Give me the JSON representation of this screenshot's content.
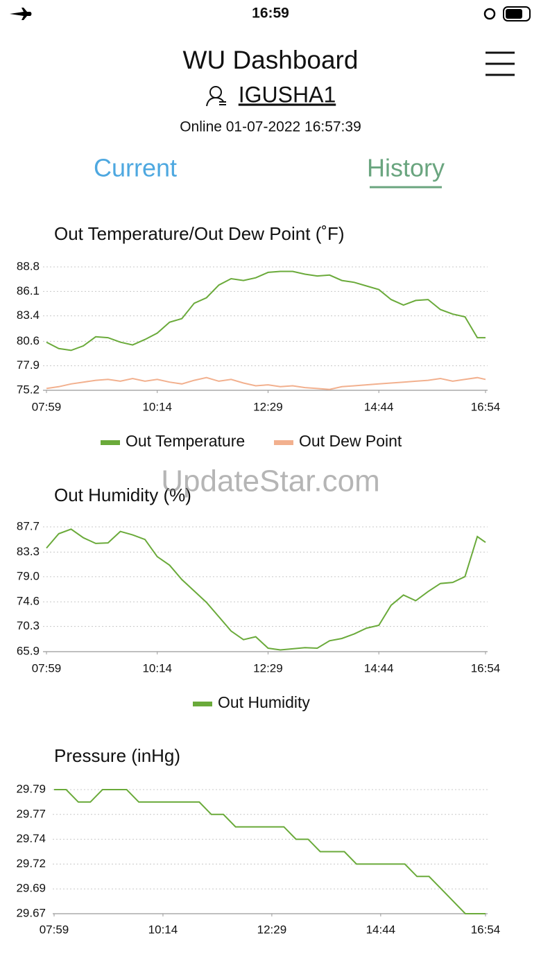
{
  "status_bar": {
    "time": "16:59"
  },
  "header": {
    "title": "WU Dashboard",
    "station": "IGUSHA1",
    "status": "Online 01-07-2022 16:57:39"
  },
  "tabs": [
    "Current",
    "History"
  ],
  "watermark": "UpdateStar.com",
  "chart_data": [
    {
      "type": "line",
      "title": "Out Temperature/Out Dew Point (˚F)",
      "x": [
        479,
        494,
        509,
        524,
        539,
        554,
        569,
        584,
        599,
        614,
        629,
        644,
        659,
        674,
        689,
        704,
        719,
        734,
        749,
        764,
        779,
        794,
        809,
        824,
        839,
        854,
        869,
        884,
        899,
        914,
        929,
        944,
        959,
        974,
        989,
        1004,
        1014
      ],
      "xlim": [
        479,
        1014
      ],
      "xticks": [
        {
          "value": 479,
          "label": "07:59"
        },
        {
          "value": 614,
          "label": "10:14"
        },
        {
          "value": 749,
          "label": "12:29"
        },
        {
          "value": 884,
          "label": "14:44"
        },
        {
          "value": 1014,
          "label": "16:54"
        }
      ],
      "ylim": [
        75.2,
        88.8
      ],
      "yticks": [
        75.2,
        77.9,
        80.6,
        83.4,
        86.1,
        88.8
      ],
      "grid": true,
      "series": [
        {
          "name": "Out Temperature",
          "color": "#6aaa3a",
          "values": [
            80.5,
            79.8,
            79.6,
            80.1,
            81.1,
            81.0,
            80.5,
            80.2,
            80.8,
            81.5,
            82.7,
            83.1,
            84.8,
            85.4,
            86.8,
            87.5,
            87.3,
            87.6,
            88.2,
            88.3,
            88.3,
            88.0,
            87.8,
            87.9,
            87.3,
            87.1,
            86.7,
            86.3,
            85.2,
            84.6,
            85.1,
            85.2,
            84.1,
            83.6,
            83.3,
            81.0,
            81.0
          ]
        },
        {
          "name": "Out Dew Point",
          "color": "#f2b08e",
          "values": [
            75.4,
            75.6,
            75.9,
            76.1,
            76.3,
            76.4,
            76.2,
            76.5,
            76.2,
            76.4,
            76.1,
            75.9,
            76.3,
            76.6,
            76.2,
            76.4,
            76.0,
            75.7,
            75.8,
            75.6,
            75.7,
            75.5,
            75.4,
            75.3,
            75.6,
            75.7,
            75.8,
            75.9,
            76.0,
            76.1,
            76.2,
            76.3,
            76.5,
            76.2,
            76.4,
            76.6,
            76.4
          ]
        }
      ]
    },
    {
      "type": "line",
      "title": "Out Humidity (%)",
      "x": [
        479,
        494,
        509,
        524,
        539,
        554,
        569,
        584,
        599,
        614,
        629,
        644,
        659,
        674,
        689,
        704,
        719,
        734,
        749,
        764,
        779,
        794,
        809,
        824,
        839,
        854,
        869,
        884,
        899,
        914,
        929,
        944,
        959,
        974,
        989,
        1004,
        1014
      ],
      "xlim": [
        479,
        1014
      ],
      "xticks": [
        {
          "value": 479,
          "label": "07:59"
        },
        {
          "value": 614,
          "label": "10:14"
        },
        {
          "value": 749,
          "label": "12:29"
        },
        {
          "value": 884,
          "label": "14:44"
        },
        {
          "value": 1014,
          "label": "16:54"
        }
      ],
      "ylim": [
        65.9,
        87.7
      ],
      "yticks": [
        65.9,
        70.3,
        74.6,
        {
          "value": 79,
          "label": "79.0"
        },
        83.3,
        87.7
      ],
      "grid": true,
      "series": [
        {
          "name": "Out Humidity",
          "color": "#6aaa3a",
          "values": [
            84,
            86.5,
            87.3,
            85.8,
            84.8,
            84.9,
            86.9,
            86.3,
            85.5,
            82.5,
            81.0,
            78.5,
            76.5,
            74.5,
            72,
            69.5,
            68,
            68.5,
            66.5,
            66.2,
            66.4,
            66.6,
            66.5,
            67.8,
            68.2,
            69.0,
            70.0,
            70.5,
            74,
            75.8,
            74.8,
            76.4,
            77.8,
            78,
            79.0,
            86.0,
            85.0
          ]
        }
      ]
    },
    {
      "type": "line",
      "title": "Pressure (inHg)",
      "x": [
        479,
        494,
        509,
        524,
        539,
        554,
        569,
        584,
        599,
        614,
        629,
        644,
        659,
        674,
        689,
        704,
        719,
        734,
        749,
        764,
        779,
        794,
        809,
        824,
        839,
        854,
        869,
        884,
        899,
        914,
        929,
        944,
        959,
        974,
        989,
        1004,
        1014
      ],
      "xlim": [
        479,
        1014
      ],
      "xticks": [
        {
          "value": 479,
          "label": "07:59"
        },
        {
          "value": 614,
          "label": "10:14"
        },
        {
          "value": 749,
          "label": "12:29"
        },
        {
          "value": 884,
          "label": "14:44"
        },
        {
          "value": 1014,
          "label": "16:54"
        }
      ],
      "ylim": [
        29.67,
        29.79
      ],
      "yticks": [
        29.67,
        {
          "value": 29.694,
          "label": "29.69"
        },
        {
          "value": 29.718,
          "label": "29.72"
        },
        {
          "value": 29.742,
          "label": "29.74"
        },
        {
          "value": 29.766,
          "label": "29.77"
        },
        29.79
      ],
      "grid": true,
      "series": [
        {
          "color": "#6aaa3a",
          "values": [
            29.79,
            29.79,
            29.778,
            29.778,
            29.79,
            29.79,
            29.79,
            29.778,
            29.778,
            29.778,
            29.778,
            29.778,
            29.778,
            29.766,
            29.766,
            29.754,
            29.754,
            29.754,
            29.754,
            29.754,
            29.742,
            29.742,
            29.73,
            29.73,
            29.73,
            29.718,
            29.718,
            29.718,
            29.718,
            29.718,
            29.706,
            29.706,
            29.694,
            29.682,
            29.67,
            29.67,
            29.67
          ]
        }
      ]
    }
  ]
}
